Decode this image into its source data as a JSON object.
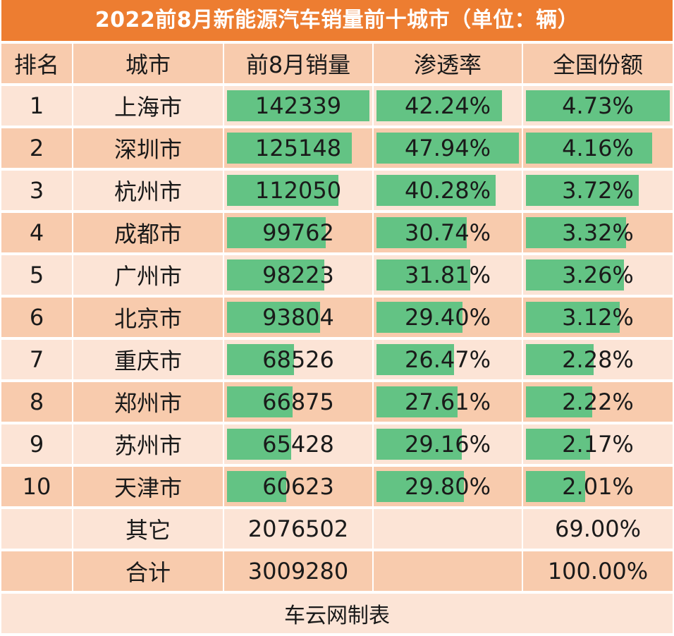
{
  "title": "2022前8月新能源汽车销量前十城市（单位：辆）",
  "columns": [
    "排名",
    "城市",
    "前8月销量",
    "渗透率",
    "全国份额"
  ],
  "rows": [
    {
      "rank": "1",
      "city": "上海市",
      "sales": "142339",
      "penetration": "42.24%",
      "share": "4.73%"
    },
    {
      "rank": "2",
      "city": "深圳市",
      "sales": "125148",
      "penetration": "47.94%",
      "share": "4.16%"
    },
    {
      "rank": "3",
      "city": "杭州市",
      "sales": "112050",
      "penetration": "40.28%",
      "share": "3.72%"
    },
    {
      "rank": "4",
      "city": "成都市",
      "sales": "99762",
      "penetration": "30.74%",
      "share": "3.32%"
    },
    {
      "rank": "5",
      "city": "广州市",
      "sales": "98223",
      "penetration": "31.81%",
      "share": "3.26%"
    },
    {
      "rank": "6",
      "city": "北京市",
      "sales": "93804",
      "penetration": "29.40%",
      "share": "3.12%"
    },
    {
      "rank": "7",
      "city": "重庆市",
      "sales": "68526",
      "penetration": "26.47%",
      "share": "2.28%"
    },
    {
      "rank": "8",
      "city": "郑州市",
      "sales": "66875",
      "penetration": "27.61%",
      "share": "2.22%"
    },
    {
      "rank": "9",
      "city": "苏州市",
      "sales": "65428",
      "penetration": "29.16%",
      "share": "2.17%"
    },
    {
      "rank": "10",
      "city": "天津市",
      "sales": "60623",
      "penetration": "29.80%",
      "share": "2.01%"
    }
  ],
  "summary": [
    {
      "label": "其它",
      "sales": "2076502",
      "share": "69.00%"
    },
    {
      "label": "合计",
      "sales": "3009280",
      "share": "100.00%"
    }
  ],
  "footer": "车云网制表",
  "colors": {
    "title_bg": "#ed7d31",
    "row_light": "#fce4d6",
    "row_dark": "#f8cbad",
    "data_bar": "#63c384"
  }
}
